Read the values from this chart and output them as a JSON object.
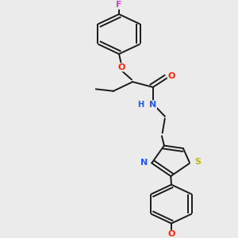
{
  "background_color": "#ebebeb",
  "bond_color": "#1a1a1a",
  "atom_colors": {
    "F": "#cc44cc",
    "O": "#ff2200",
    "N": "#2255ff",
    "S": "#bbbb00",
    "C": "#1a1a1a"
  },
  "figsize": [
    3.0,
    3.0
  ],
  "dpi": 100,
  "lw": 1.4,
  "fontsize": 7.5
}
